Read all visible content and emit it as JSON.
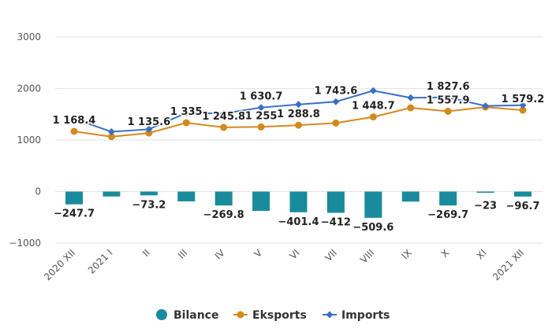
{
  "chart_data": {
    "type": "bar+line",
    "categories": [
      "2020 XII",
      "2021 I",
      "II",
      "III",
      "IV",
      "V",
      "VI",
      "VII",
      "VIII",
      "IX",
      "X",
      "XI",
      "2021 XII"
    ],
    "ylim": [
      -1000,
      3000
    ],
    "yticks": [
      3000,
      2000,
      1000,
      0,
      -1000
    ],
    "ytick_labels": [
      "3000",
      "2000",
      "1000",
      "0",
      "−1000"
    ],
    "grid": true,
    "legend_position": "bottom",
    "series": [
      {
        "name": "Bilance",
        "kind": "bar",
        "color": "#1a8b9d",
        "values": [
          -247.7,
          -95,
          -73.2,
          -190,
          -269.8,
          -375,
          -401.4,
          -412,
          -509.6,
          -195,
          -269.7,
          -23,
          -96.7
        ],
        "labels": [
          "−247.7",
          "",
          "−73.2",
          "",
          "−269.8",
          "",
          "−401.4",
          "−412",
          "−509.6",
          "",
          "−269.7",
          "−23",
          "−96.7"
        ]
      },
      {
        "name": "Eksports",
        "kind": "line",
        "color": "#d4891f",
        "values": [
          1168.4,
          1065,
          1135.6,
          1335,
          1245.8,
          1255,
          1288.8,
          1330,
          1448.7,
          1625,
          1557.9,
          1640,
          1579.2
        ],
        "labels": [
          "1 168.4",
          "",
          "1 135.6",
          "1 335",
          "1 245.8",
          "1 255",
          "1 288.8",
          "",
          "1 448.7",
          "",
          "1 557.9",
          "",
          "1 579.2"
        ]
      },
      {
        "name": "Imports",
        "kind": "line",
        "color": "#3a6fc4",
        "values": [
          1416,
          1160,
          1209,
          1525,
          1516,
          1630.7,
          1690,
          1743.6,
          1958,
          1820,
          1827.6,
          1663,
          1676
        ],
        "labels": [
          "",
          "",
          "",
          "",
          "",
          "1 630.7",
          "",
          "1 743.6",
          "",
          "",
          "1 827.6",
          "",
          ""
        ]
      }
    ]
  }
}
